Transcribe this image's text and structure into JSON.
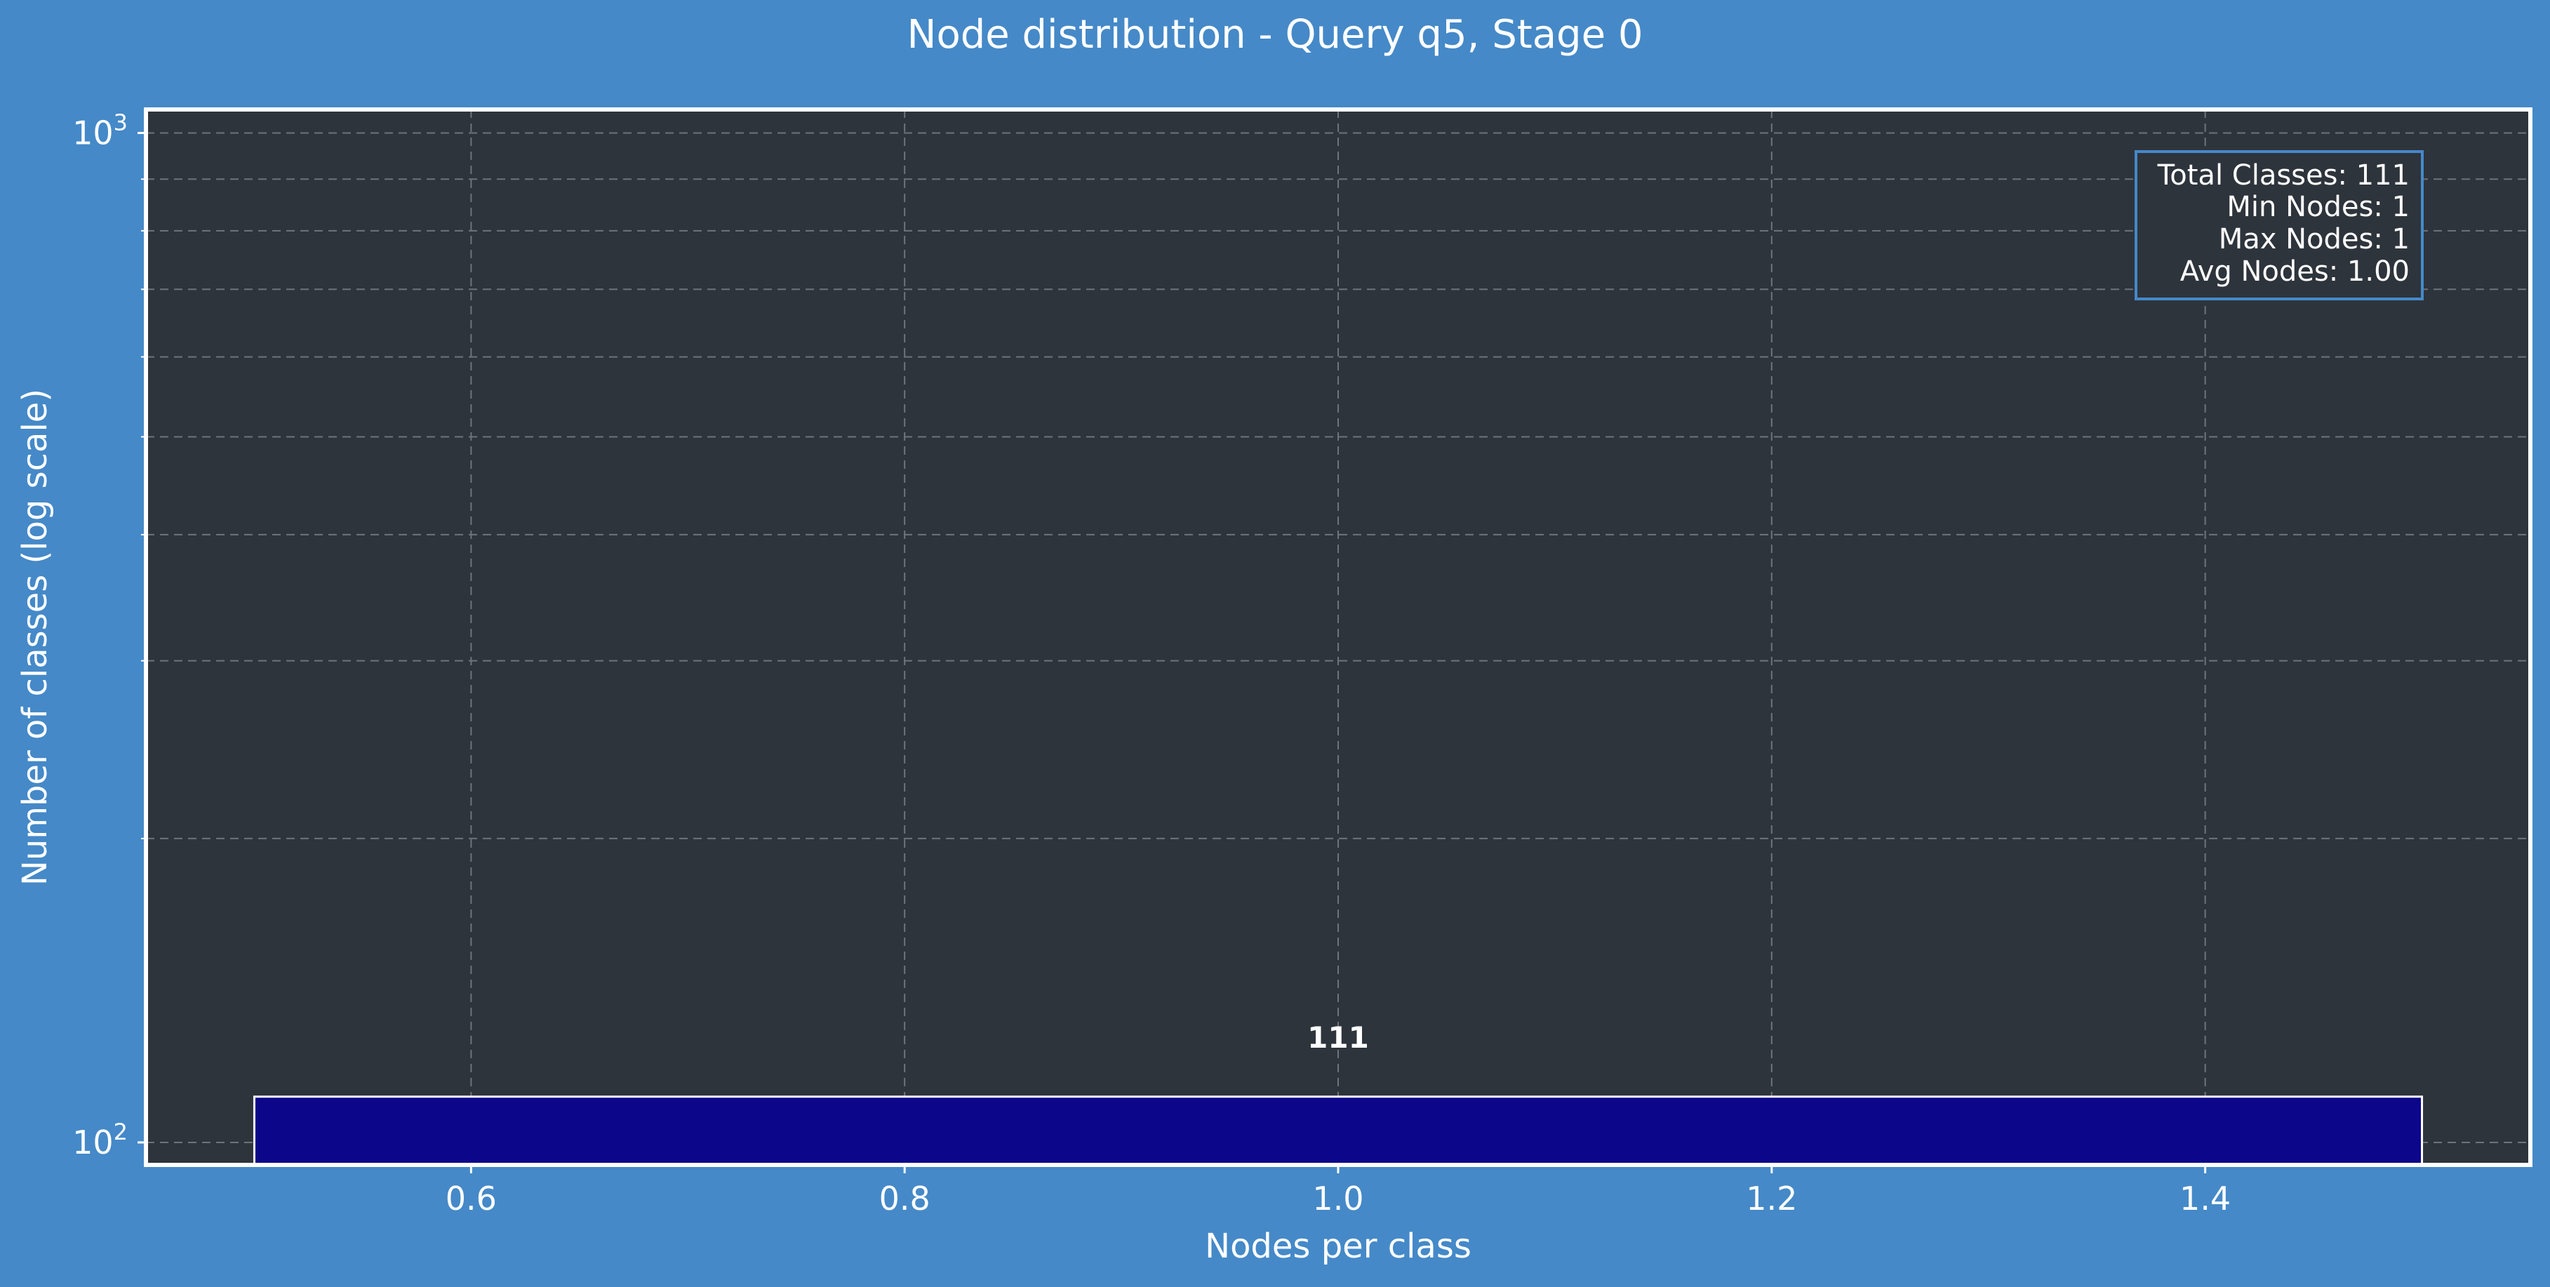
{
  "colors": {
    "figure_background": "#4589c8",
    "plot_background": "#2e343c",
    "bar_fill": "#0c068a",
    "bar_edge": "#ffffff",
    "grid": "#6f737b",
    "stats_box_edge": "#4589c8",
    "text": "#ffffff"
  },
  "chart_data": {
    "type": "bar",
    "title": "Node distribution - Query q5, Stage 0",
    "xlabel": "Nodes per class",
    "ylabel": "Number of classes (log scale)",
    "y_scale": "log",
    "xlim": [
      0.45,
      1.55
    ],
    "ylim": [
      95,
      1055
    ],
    "x_ticks": [
      0.6,
      0.8,
      1.0,
      1.2,
      1.4
    ],
    "x_tick_labels": [
      "0.6",
      "0.8",
      "1.0",
      "1.2",
      "1.4"
    ],
    "y_ticks": [
      {
        "value": 100,
        "base": "10",
        "exponent": "2"
      },
      {
        "value": 1000,
        "base": "10",
        "exponent": "3"
      }
    ],
    "grid": true,
    "bars": [
      {
        "x": 1.0,
        "x_start": 0.5,
        "x_end": 1.5,
        "value": 111,
        "label": "111"
      }
    ],
    "stats_box": {
      "placement": "top-right",
      "lines": [
        "Total Classes: 111",
        "Min Nodes: 1",
        "Max Nodes: 1",
        "Avg Nodes: 1.00"
      ]
    }
  }
}
